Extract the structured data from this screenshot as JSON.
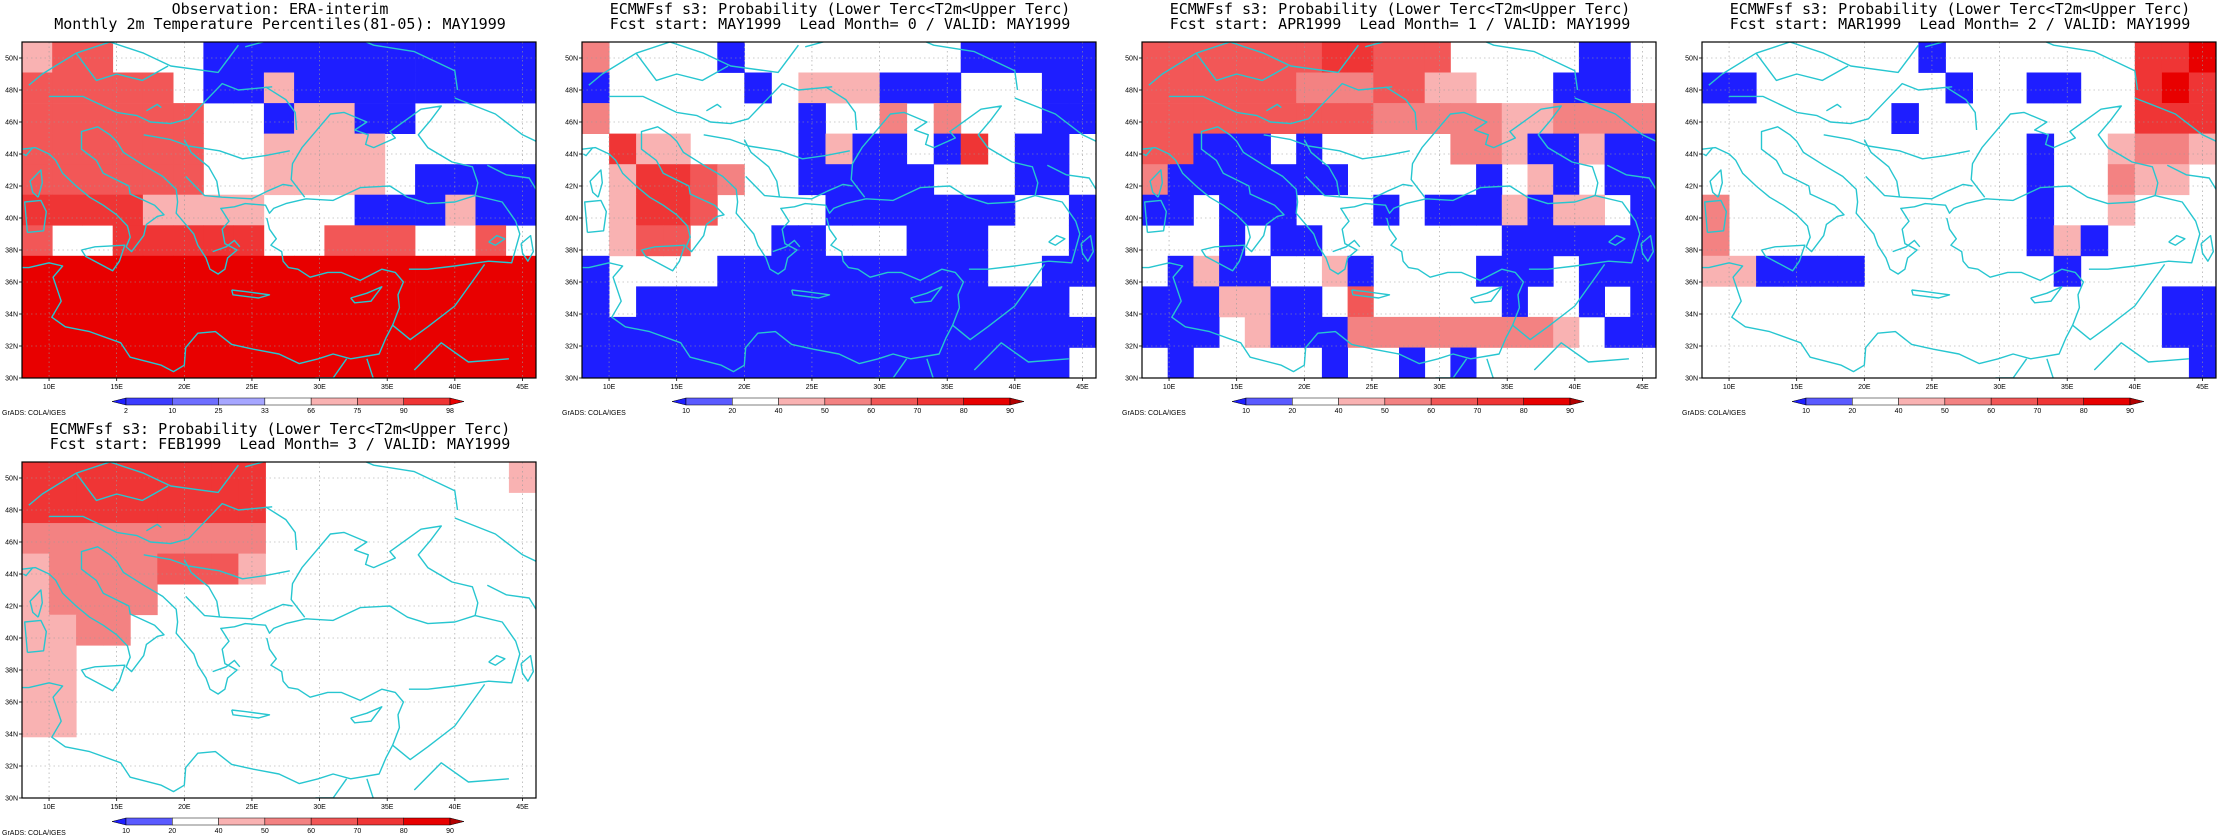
{
  "figure": {
    "map_extent": {
      "lon": [
        8,
        46
      ],
      "lat": [
        30,
        51
      ]
    },
    "lon_ticks": [
      "10E",
      "15E",
      "20E",
      "25E",
      "30E",
      "35E",
      "40E",
      "45E"
    ],
    "lat_ticks": [
      "30N",
      "32N",
      "34N",
      "36N",
      "38N",
      "40N",
      "42N",
      "44N",
      "46N",
      "48N",
      "50N"
    ],
    "credit_text": "GrADS: COLA/IGES",
    "colors": {
      "coast": "#27c6d0",
      "shading": {
        "-3": "#1e1eff",
        "-2": "#5a5aff",
        "-1": "#a6a6ff",
        "0": "#ffffff",
        "1": "#f9b2b2",
        "2": "#f38282",
        "3": "#f25757",
        "4": "#ef3535",
        "5": "#e80000"
      }
    }
  },
  "panels": [
    {
      "title_line1": "Observation: ERA-interim",
      "title_line2": "Monthly 2m Temperature Percentiles(81-05): MAY1999",
      "colorbar_labels": [
        "2",
        "10",
        "25",
        "33",
        "66",
        "75",
        "90",
        "98"
      ],
      "colorbar_colors": [
        "#1e1eff",
        "#3c3cff",
        "#6e6eff",
        "#a6a6ff",
        "#ffffff",
        "#f9b2b2",
        "#f38282",
        "#ef3535",
        "#e80000"
      ],
      "grid_rows": [
        "133000-----------",
        "333330--1---------",
        "33333300-11--00000",
        "333333001111000000",
        "3333330011110-----",
        "44441111000---1---",
        "300444440033300300",
        "555555555555555555",
        "555555555555555555",
        "555555555555555555",
        "555555555555555555"
      ]
    },
    {
      "title_line1": "ECMWFsf s3: Probability (Lower Terc<T2m<Upper Terc)",
      "title_line2": "Fcst start: MAY1999  Lead Month= 0 / VALID: MAY1999",
      "colorbar_labels": [
        "10",
        "20",
        "40",
        "50",
        "60",
        "70",
        "80",
        "90"
      ],
      "colorbar_colors": [
        "#1e1eff",
        "#5a5aff",
        "#ffffff",
        "#f9b2b2",
        "#f38282",
        "#f25757",
        "#ef3535",
        "#e80000",
        "#b30000"
      ],
      "grid_rows": [
        "20000-00000000-----",
        "-00000-0111---000--",
        "20000000-00202000--",
        "04110000-1--0-40--0",
        "01443200-----000--0",
        "014430000-------00-",
        "0133000--000---000-",
        "-0000----------00--",
        "-0----------------0",
        "-------------------",
        "------------------0"
      ]
    },
    {
      "title_line1": "ECMWFsf s3: Probability (Lower Terc<T2m<Upper Terc)",
      "title_line2": "Fcst start: APR1999  Lead Month= 1 / VALID: MAY1999",
      "colorbar_labels": [
        "10",
        "20",
        "40",
        "50",
        "60",
        "70",
        "80",
        "90"
      ],
      "colorbar_colors": [
        "#1e1eff",
        "#5a5aff",
        "#ffffff",
        "#f9b2b2",
        "#f38282",
        "#f25757",
        "#ef3535",
        "#e80000",
        "#b30000"
      ],
      "grid_rows": [
        "33333334433300000--0",
        "3333332223311000---0",
        "33333333322222112222",
        "33---0-00000221--1--",
        "2-------00000-01-0--",
        "--0---000-0---1-110-",
        "000-0--0000000------",
        "0-1--001-0000---0---",
        "---11--0300000-00-0-",
        "---01---2222222210--",
        "0-00000-00-0-0000000"
      ]
    },
    {
      "title_line1": "ECMWFsf s3: Probability (Lower Terc<T2m<Upper Terc)",
      "title_line2": "Fcst start: MAR1999  Lead Month= 2 / VALID: MAY1999",
      "colorbar_labels": [
        "10",
        "20",
        "40",
        "50",
        "60",
        "70",
        "80",
        "90"
      ],
      "colorbar_colors": [
        "#1e1eff",
        "#5a5aff",
        "#ffffff",
        "#f9b2b2",
        "#f38282",
        "#f25757",
        "#ef3535",
        "#e80000",
        "#b30000"
      ],
      "grid_rows": [
        "00000000-0000000445",
        "--0000000-00--00454",
        "0000000-00000000444",
        "000000000000-001221",
        "000000000000-002110",
        "200000000000-001000",
        "200000000000-1-0000",
        "11----0000000-00000",
        "00000000000000000--",
        "00000000000000000--",
        "000000000000000000-"
      ]
    },
    {
      "title_line1": "ECMWFsf s3: Probability (Lower Terc<T2m<Upper Terc)",
      "title_line2": "Fcst start: FEB1999  Lead Month= 3 / VALID: MAY1999",
      "colorbar_labels": [
        "10",
        "20",
        "40",
        "50",
        "60",
        "70",
        "80",
        "90"
      ],
      "colorbar_colors": [
        "#1e1eff",
        "#5a5aff",
        "#ffffff",
        "#f9b2b2",
        "#f38282",
        "#f25757",
        "#ef3535",
        "#e80000",
        "#b30000"
      ],
      "grid_rows": [
        "4444444440000000001",
        "4444444440000000000",
        "2222222220000000000",
        "1222233310000000000",
        "1222200000000000000",
        "1122000000000000000",
        "1100000000000000000",
        "1100000000000000000",
        "1100000000000000000",
        "0000000000000000000",
        "0000000000000000000"
      ]
    }
  ]
}
